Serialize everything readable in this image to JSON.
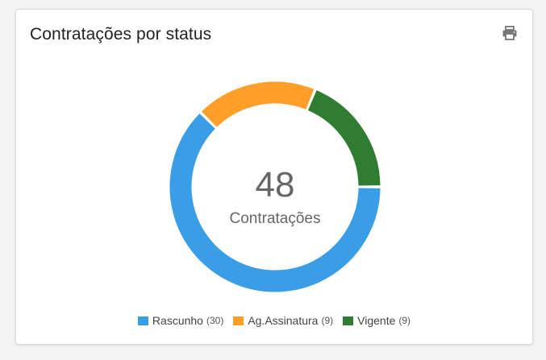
{
  "card": {
    "title": "Contratações por status"
  },
  "icons": {
    "print": "print-icon"
  },
  "chart_data": {
    "type": "pie",
    "variant": "donut",
    "center_value": "48",
    "center_label": "Contratações",
    "legend_position": "bottom",
    "series": [
      {
        "name": "Rascunho",
        "value": 30,
        "count_label": "(30)",
        "color": "#3a9ee6"
      },
      {
        "name": "Ag.Assinatura",
        "value": 9,
        "count_label": "(9)",
        "color": "#ff9f2a"
      },
      {
        "name": "Vigente",
        "value": 9,
        "count_label": "(9)",
        "color": "#2e7d32"
      }
    ]
  }
}
